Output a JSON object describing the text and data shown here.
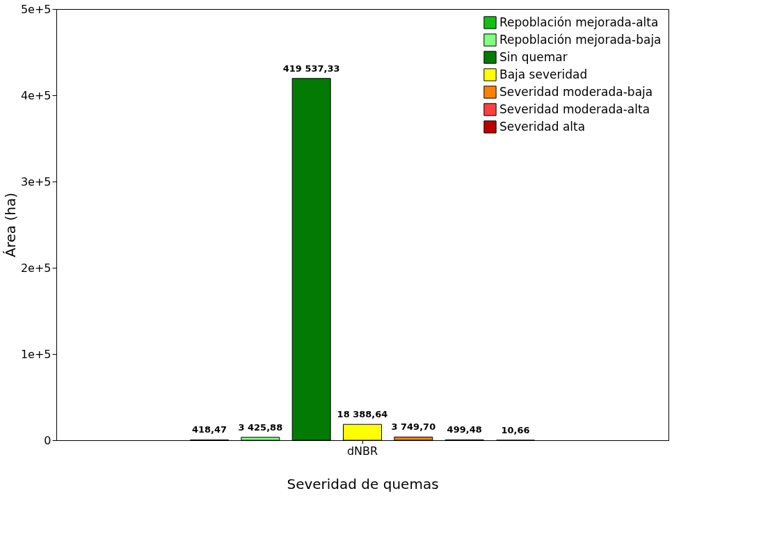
{
  "chart_data": {
    "type": "bar",
    "categories": [
      "dNBR"
    ],
    "xlabel": "Severidad de quemas",
    "ylabel": "Área (ha)",
    "series": [
      {
        "name": "Repoblación mejorada-alta",
        "color": "#12c012",
        "values": [
          418.47
        ],
        "value_labels": [
          "418,47"
        ]
      },
      {
        "name": "Repoblación mejorada-baja",
        "color": "#80ff80",
        "values": [
          3425.88
        ],
        "value_labels": [
          "3 425,88"
        ]
      },
      {
        "name": "Sin quemar",
        "color": "#037a03",
        "values": [
          419537.33
        ],
        "value_labels": [
          "419 537,33"
        ]
      },
      {
        "name": "Baja severidad",
        "color": "#ffff00",
        "values": [
          18388.64
        ],
        "value_labels": [
          "18 388,64"
        ]
      },
      {
        "name": "Severidad moderada-baja",
        "color": "#ff8000",
        "values": [
          3749.7
        ],
        "value_labels": [
          "3 749,70"
        ]
      },
      {
        "name": "Severidad moderada-alta",
        "color": "#ff4040",
        "values": [
          499.48
        ],
        "value_labels": [
          "499,48"
        ]
      },
      {
        "name": "Severidad alta",
        "color": "#c00000",
        "values": [
          10.66
        ],
        "value_labels": [
          "10,66"
        ]
      }
    ],
    "ylim": [
      0,
      500000
    ],
    "yticks": [
      0,
      {
        "value": 100000,
        "label": "1e+5"
      },
      {
        "value": 200000,
        "label": "2e+5"
      },
      {
        "value": 300000,
        "label": "3e+5"
      },
      {
        "value": 400000,
        "label": "4e+5"
      },
      {
        "value": 500000,
        "label": "5e+5"
      }
    ],
    "legend": "top right",
    "grid": false
  }
}
